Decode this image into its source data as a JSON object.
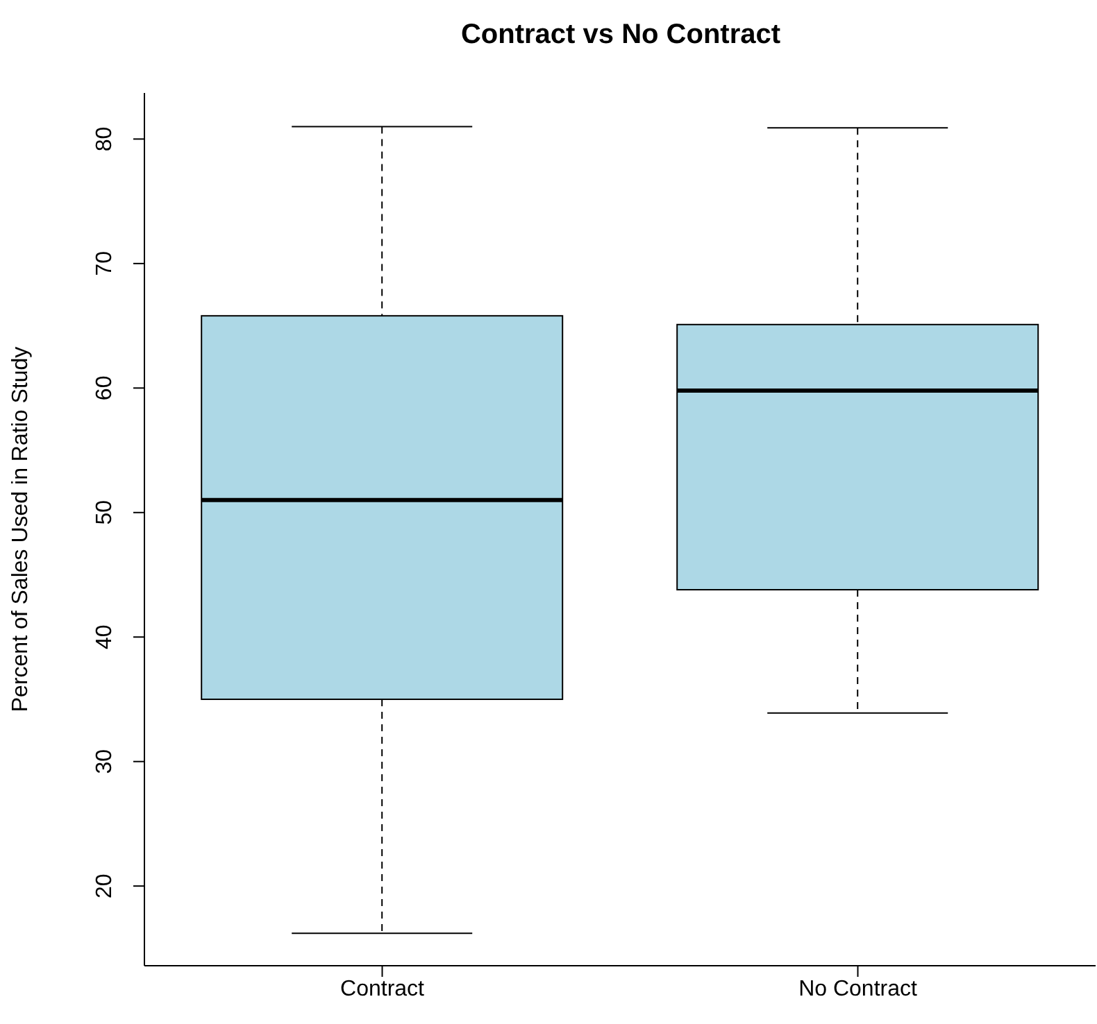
{
  "chart_data": {
    "type": "box",
    "title": "Contract vs No Contract",
    "ylabel": "Percent of Sales Used in Ratio Study",
    "categories": [
      "Contract",
      "No Contract"
    ],
    "boxes": [
      {
        "low": 16.2,
        "q1": 35.0,
        "median": 51.0,
        "q3": 65.8,
        "high": 81.0
      },
      {
        "low": 33.9,
        "q1": 43.8,
        "median": 59.8,
        "q3": 65.1,
        "high": 80.9
      }
    ],
    "color": "#add8e6",
    "ylim": [
      13.6,
      83.7
    ],
    "yticks": [
      20,
      30,
      40,
      50,
      60,
      70,
      80
    ],
    "grid": false,
    "legend": false,
    "line_style": "dashed"
  }
}
